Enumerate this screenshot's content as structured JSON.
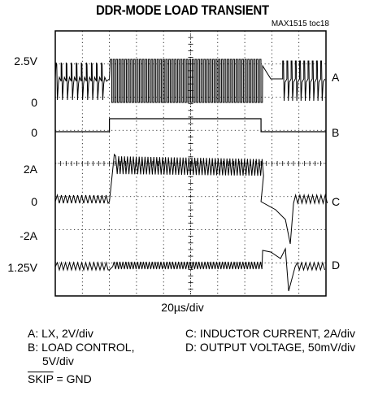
{
  "title": "DDR-MODE LOAD TRANSIENT",
  "figure_id": "MAX1515 toc18",
  "left_labels": [
    "2.5V",
    "0",
    "0",
    "2A",
    "0",
    "-2A",
    "1.25V"
  ],
  "right_labels": [
    "A",
    "B",
    "C",
    "D"
  ],
  "timebase": "20µs/div",
  "legend": {
    "a": "A: LX, 2V/div",
    "b_line1": "B: LOAD CONTROL,",
    "b_line2": "5V/div",
    "c": "C: INDUCTOR CURRENT, 2A/div",
    "d": "D: OUTPUT VOLTAGE, 50mV/div",
    "skip_word": "SKIP",
    "skip_rest": " = GND"
  },
  "colors": {
    "trace": "#000000",
    "grid": "#000000",
    "background": "#ffffff"
  },
  "chart_data": {
    "type": "line",
    "title": "DDR-MODE LOAD TRANSIENT",
    "xlabel": "20µs/div",
    "grid": true,
    "x_divisions": 10,
    "y_divisions": 8,
    "load_step_on_div": 2.0,
    "load_step_off_div": 7.6,
    "series": [
      {
        "name": "A: LX, 2V/div",
        "description_levels": [
          "0",
          "2.5V"
        ]
      },
      {
        "name": "B: LOAD CONTROL, 5V/div",
        "low": "0",
        "high": "5V"
      },
      {
        "name": "C: INDUCTOR CURRENT, 2A/div",
        "light_load": "0",
        "heavy_load": "2A"
      },
      {
        "name": "D: OUTPUT VOLTAGE, 50mV/div",
        "nominal": "1.25V"
      }
    ]
  }
}
